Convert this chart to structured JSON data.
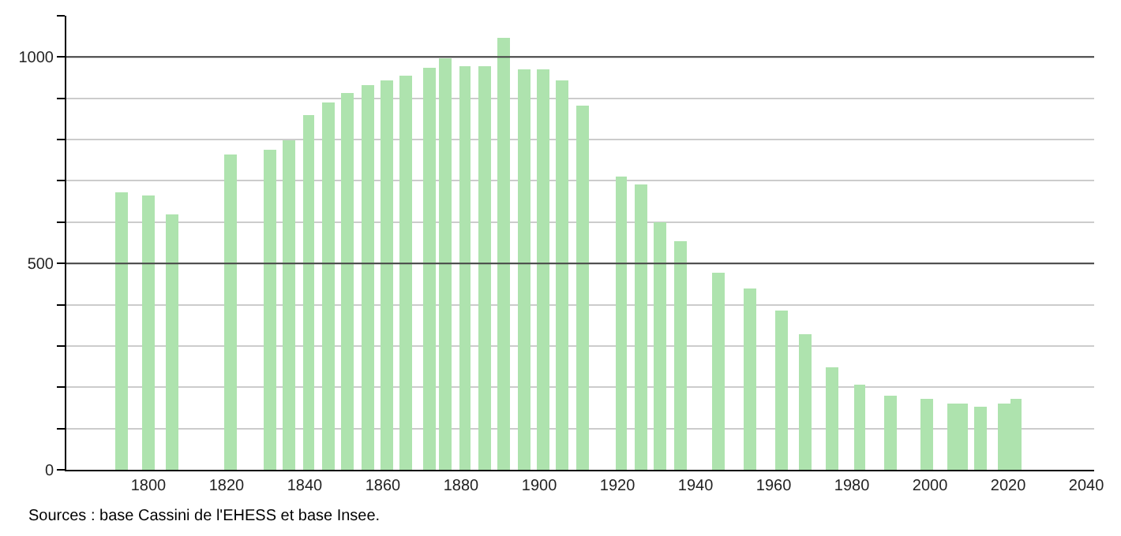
{
  "chart_data": {
    "type": "bar",
    "x": [
      1793,
      1800,
      1806,
      1821,
      1831,
      1836,
      1841,
      1846,
      1851,
      1856,
      1861,
      1866,
      1872,
      1876,
      1881,
      1886,
      1891,
      1896,
      1901,
      1906,
      1911,
      1921,
      1926,
      1931,
      1936,
      1946,
      1954,
      1962,
      1968,
      1975,
      1982,
      1990,
      1999,
      2006,
      2008,
      2013,
      2019,
      2022
    ],
    "values": [
      674,
      664,
      618,
      765,
      777,
      799,
      861,
      891,
      914,
      932,
      943,
      956,
      975,
      996,
      976,
      978,
      1047,
      971,
      971,
      945,
      882,
      709,
      690,
      600,
      552,
      479,
      440,
      385,
      329,
      247,
      207,
      180,
      172,
      161,
      161,
      153,
      161,
      172
    ],
    "color": "#aee3ae",
    "xlim": [
      1779,
      2042
    ],
    "xticks": [
      1800,
      1820,
      1840,
      1860,
      1880,
      1900,
      1920,
      1940,
      1960,
      1980,
      2000,
      2020,
      2040
    ],
    "ylim": [
      0,
      1100
    ],
    "yticks": [
      0,
      {
        "value": 100,
        "label": null
      },
      {
        "value": 200,
        "label": null
      },
      {
        "value": 300,
        "label": null
      },
      {
        "value": 400,
        "label": null
      },
      500,
      {
        "value": 600,
        "label": null
      },
      {
        "value": 700,
        "label": null
      },
      {
        "value": 800,
        "label": null
      },
      {
        "value": 900,
        "label": null
      },
      1000,
      {
        "value": 1100,
        "label": null
      }
    ],
    "grid": "y",
    "annotations": [
      "Sources : base Cassini de l'EHESS et base Insee."
    ]
  }
}
